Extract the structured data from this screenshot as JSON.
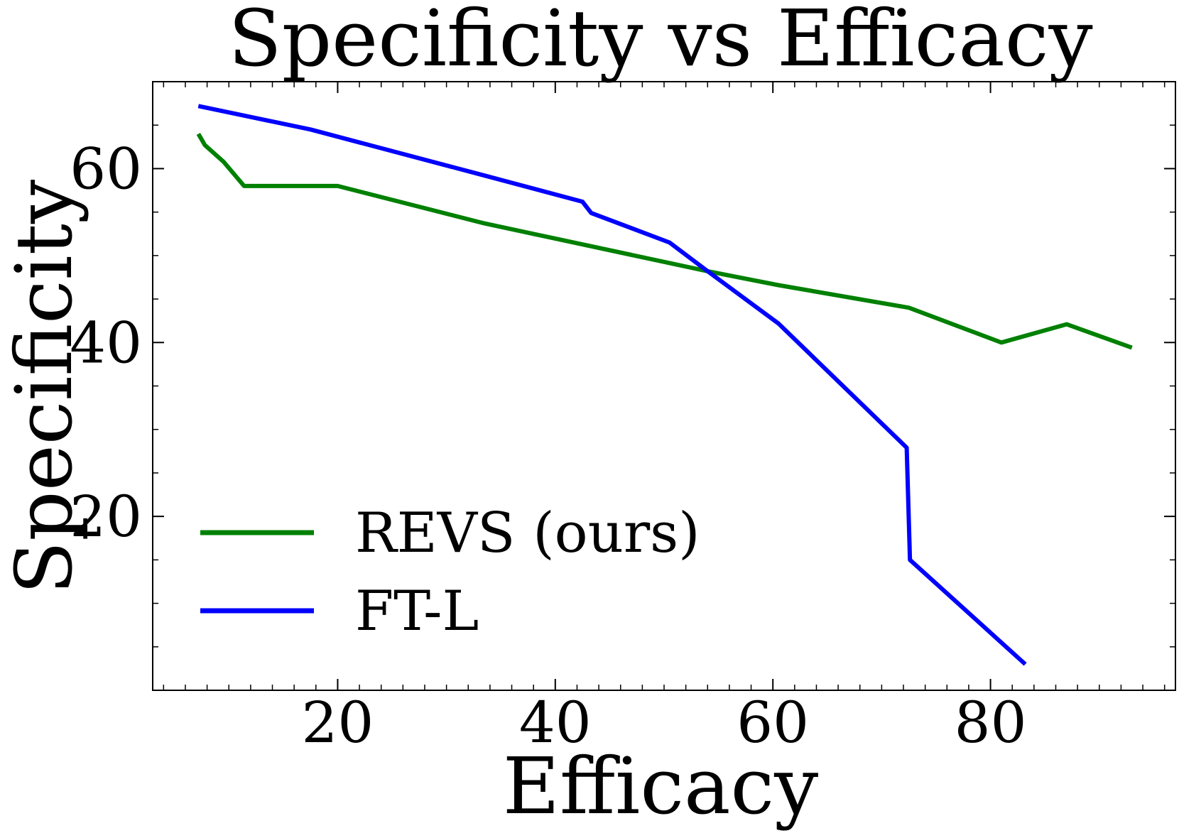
{
  "chart_data": {
    "type": "line",
    "title": "Specificity vs Efficacy",
    "xlabel": "Efficacy",
    "ylabel": "Specificity",
    "xlim": [
      3,
      97
    ],
    "ylim": [
      0,
      70
    ],
    "xticks": [
      20,
      40,
      60,
      80
    ],
    "yticks": [
      20,
      40,
      60
    ],
    "xminor_step": 2,
    "yminor_step": 5,
    "grid": false,
    "legend_position": "bottom-left",
    "series": [
      {
        "name": "REVS (ours)",
        "color": "#008000",
        "x": [
          7.2,
          7.8,
          9.5,
          11.4,
          15.5,
          20.0,
          33.5,
          54.0,
          60.5,
          72.5,
          81.0,
          87.0,
          93.0
        ],
        "y": [
          64.0,
          62.7,
          60.8,
          58.0,
          58.0,
          58.0,
          53.7,
          48.2,
          46.6,
          44.0,
          40.0,
          42.1,
          39.4
        ]
      },
      {
        "name": "FT-L",
        "color": "#0000ff",
        "x": [
          7.2,
          17.5,
          33.5,
          42.5,
          43.3,
          50.5,
          54.0,
          60.5,
          72.3,
          72.6,
          83.2
        ],
        "y": [
          67.2,
          64.5,
          59.2,
          56.2,
          54.9,
          51.5,
          48.2,
          42.2,
          27.9,
          15.0,
          3.0
        ]
      }
    ]
  }
}
